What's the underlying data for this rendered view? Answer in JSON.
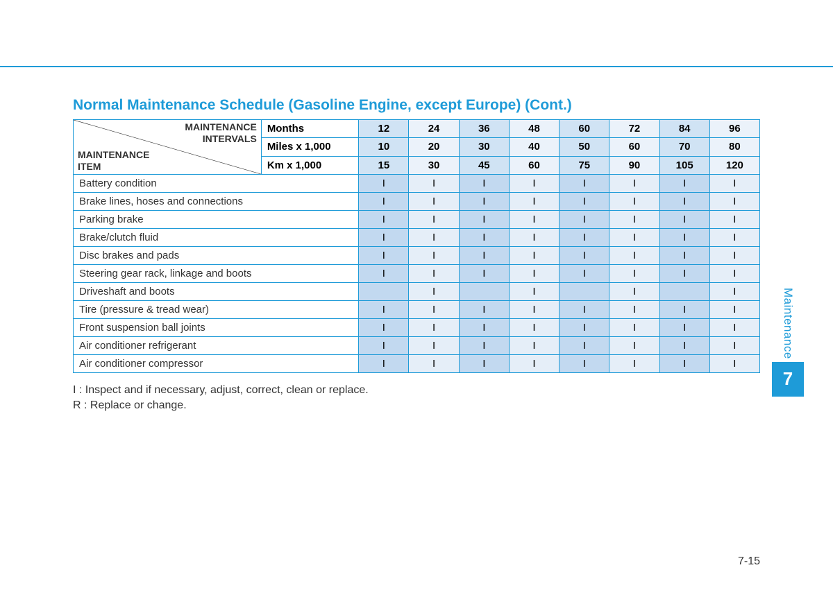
{
  "title": "Normal Maintenance Schedule (Gasoline Engine, except Europe) (Cont.)",
  "corner": {
    "intervals_line1": "MAINTENANCE",
    "intervals_line2": "INTERVALS",
    "item_line1": "MAINTENANCE",
    "item_line2": "ITEM"
  },
  "header_rows": [
    {
      "label": "Months",
      "values": [
        "12",
        "24",
        "36",
        "48",
        "60",
        "72",
        "84",
        "96"
      ]
    },
    {
      "label": "Miles x 1,000",
      "values": [
        "10",
        "20",
        "30",
        "40",
        "50",
        "60",
        "70",
        "80"
      ]
    },
    {
      "label": "Km x 1,000",
      "values": [
        "15",
        "30",
        "45",
        "60",
        "75",
        "90",
        "105",
        "120"
      ]
    }
  ],
  "items": [
    {
      "label": "Battery condition",
      "vals": [
        "I",
        "I",
        "I",
        "I",
        "I",
        "I",
        "I",
        "I"
      ]
    },
    {
      "label": "Brake lines, hoses and connections",
      "vals": [
        "I",
        "I",
        "I",
        "I",
        "I",
        "I",
        "I",
        "I"
      ]
    },
    {
      "label": "Parking brake",
      "vals": [
        "I",
        "I",
        "I",
        "I",
        "I",
        "I",
        "I",
        "I"
      ]
    },
    {
      "label": "Brake/clutch fluid",
      "vals": [
        "I",
        "I",
        "I",
        "I",
        "I",
        "I",
        "I",
        "I"
      ]
    },
    {
      "label": "Disc brakes and pads",
      "vals": [
        "I",
        "I",
        "I",
        "I",
        "I",
        "I",
        "I",
        "I"
      ]
    },
    {
      "label": "Steering gear rack, linkage and boots",
      "vals": [
        "I",
        "I",
        "I",
        "I",
        "I",
        "I",
        "I",
        "I"
      ]
    },
    {
      "label": "Driveshaft and boots",
      "vals": [
        "",
        "I",
        "",
        "I",
        "",
        "I",
        "",
        "I"
      ]
    },
    {
      "label": "Tire (pressure & tread wear)",
      "vals": [
        "I",
        "I",
        "I",
        "I",
        "I",
        "I",
        "I",
        "I"
      ]
    },
    {
      "label": "Front suspension ball joints",
      "vals": [
        "I",
        "I",
        "I",
        "I",
        "I",
        "I",
        "I",
        "I"
      ]
    },
    {
      "label": "Air conditioner refrigerant",
      "vals": [
        "I",
        "I",
        "I",
        "I",
        "I",
        "I",
        "I",
        "I"
      ]
    },
    {
      "label": "Air conditioner compressor",
      "vals": [
        "I",
        "I",
        "I",
        "I",
        "I",
        "I",
        "I",
        "I"
      ]
    }
  ],
  "legend_i": "I : Inspect and if necessary, adjust, correct, clean or replace.",
  "legend_r": "R : Replace or change.",
  "side": {
    "label": "Maintenance",
    "chapter": "7"
  },
  "page_number": "7-15",
  "colors": {
    "accent": "#1e9bd8",
    "header_odd": "#d0e3f4",
    "header_even": "#ebf2fa",
    "body_odd": "#c2d9f0",
    "body_even": "#e5eef8"
  }
}
